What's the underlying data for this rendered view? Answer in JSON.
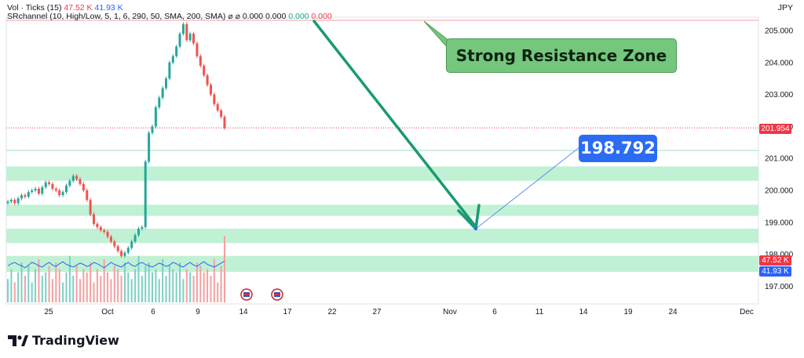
{
  "legend": {
    "vol_label": "Vol · Ticks (15)",
    "vol_value_1": "47.52 K",
    "vol_value_2": "41.93 K",
    "sr_label": "SRchannel (10, High/Low, 5, 1, 6, 290, 50, SMA, 200, SMA)",
    "sr_symbols": "⌀  ⌀",
    "sr_value_1": "0.000",
    "sr_value_2": "0.000",
    "sr_value_3": "0.000",
    "sr_value_4": "0.000"
  },
  "currency": "JPY",
  "annotations": {
    "resistance": "Strong Resistance Zone",
    "target": "198.792"
  },
  "price_tags": {
    "last_price": "201.954",
    "vol_1": "47.52 K",
    "vol_2": "41.93 K"
  },
  "brand": {
    "name": "TradingView"
  },
  "colors": {
    "up": "#26a69a",
    "down": "#ef5350",
    "zone": "#b9f0cf",
    "resistance_line": "#f4a6ad",
    "arrow": "#1a9a72",
    "target": "#2b6cf5"
  },
  "chart_data": {
    "type": "candlestick",
    "currency": "JPY",
    "y_ticks": [
      "205.000",
      "204.000",
      "203.000",
      "202.000",
      "201.000",
      "200.000",
      "199.000",
      "198.000",
      "197.000"
    ],
    "x_ticks": [
      "25",
      "Oct",
      "6",
      "9",
      "14",
      "17",
      "22",
      "27",
      "Nov",
      "6",
      "11",
      "14",
      "19",
      "24",
      "Dec"
    ],
    "ylim": [
      196.6,
      205.5
    ],
    "last_price": 201.954,
    "resistance_level": 205.32,
    "support_zones": [
      [
        200.3,
        200.75
      ],
      [
        199.2,
        199.55
      ],
      [
        198.35,
        198.8
      ],
      [
        197.45,
        197.95
      ]
    ],
    "horizontal_line": 201.25,
    "target_price": 198.792,
    "price_path": [
      199.65,
      199.7,
      199.6,
      199.75,
      199.85,
      199.8,
      199.95,
      200.0,
      200.05,
      199.9,
      200.1,
      200.25,
      200.2,
      200.05,
      200.0,
      199.85,
      199.95,
      200.15,
      200.3,
      200.45,
      200.35,
      200.2,
      200.0,
      199.7,
      199.25,
      198.95,
      198.85,
      198.75,
      198.7,
      198.55,
      198.4,
      198.25,
      198.1,
      197.95,
      198.05,
      198.2,
      198.4,
      198.6,
      198.8,
      198.85,
      200.9,
      201.8,
      202.0,
      202.6,
      202.9,
      203.2,
      203.5,
      204.0,
      204.2,
      204.5,
      204.9,
      205.2,
      204.7,
      204.9,
      204.6,
      204.2,
      203.9,
      203.6,
      203.3,
      203.0,
      202.7,
      202.5,
      202.3,
      201.95
    ],
    "volume_levels": [
      0.35,
      0.5,
      0.3,
      0.45,
      0.6,
      0.4,
      0.55,
      0.3,
      0.5,
      0.65,
      0.4,
      0.45,
      0.55,
      0.35,
      0.6,
      0.5,
      0.3,
      0.45,
      0.7,
      0.4,
      0.55,
      0.35,
      0.5,
      0.45,
      0.6,
      0.3,
      0.5,
      0.4,
      0.65,
      0.45,
      0.35,
      0.55,
      0.5,
      0.4,
      0.6,
      0.45,
      0.35,
      0.5,
      0.7,
      0.4,
      0.55,
      0.6,
      0.45,
      0.5,
      0.35,
      0.65,
      0.4,
      0.55,
      0.5,
      0.45,
      0.6,
      0.35,
      0.5,
      0.45,
      0.4,
      0.6,
      0.55,
      0.45,
      0.5,
      0.4,
      0.65,
      0.3,
      0.55,
      1.0
    ],
    "volume_ma": [
      0.55,
      0.58,
      0.6,
      0.57,
      0.55,
      0.52,
      0.56,
      0.6,
      0.58,
      0.55,
      0.53,
      0.57,
      0.6,
      0.56,
      0.54,
      0.58,
      0.61,
      0.57,
      0.55,
      0.53,
      0.56,
      0.59,
      0.57,
      0.54,
      0.56,
      0.6,
      0.58,
      0.55,
      0.52,
      0.56,
      0.6,
      0.57,
      0.55,
      0.53,
      0.57,
      0.6,
      0.56,
      0.54,
      0.58,
      0.6,
      0.57,
      0.55,
      0.53,
      0.56,
      0.59,
      0.57,
      0.54,
      0.56,
      0.6,
      0.58,
      0.55,
      0.53,
      0.57,
      0.6,
      0.56,
      0.54,
      0.58,
      0.61,
      0.57,
      0.55,
      0.53,
      0.56,
      0.59,
      0.62
    ]
  }
}
